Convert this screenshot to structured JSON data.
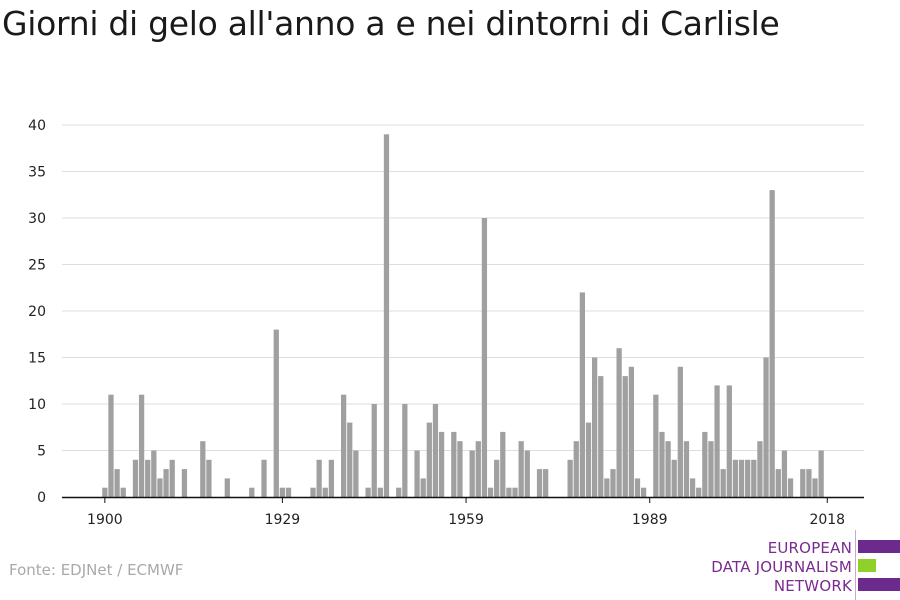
{
  "chart_data": {
    "type": "bar",
    "title": "Giorni di gelo all'anno a e nei dintorni di Carlisle",
    "xlabel": "",
    "ylabel": "",
    "ylim": [
      0,
      40
    ],
    "yticks": [
      0,
      5,
      10,
      15,
      20,
      25,
      30,
      35,
      40
    ],
    "xticks": [
      1900,
      1929,
      1959,
      1989,
      2018
    ],
    "xlim": [
      1893,
      2024
    ],
    "grid": true,
    "bar_color": "#a0a0a0",
    "x": [
      1900,
      1901,
      1902,
      1903,
      1904,
      1905,
      1906,
      1907,
      1908,
      1909,
      1910,
      1911,
      1912,
      1913,
      1914,
      1915,
      1916,
      1917,
      1918,
      1919,
      1920,
      1921,
      1922,
      1923,
      1924,
      1925,
      1926,
      1927,
      1928,
      1929,
      1930,
      1931,
      1932,
      1933,
      1934,
      1935,
      1936,
      1937,
      1938,
      1939,
      1940,
      1941,
      1942,
      1943,
      1944,
      1945,
      1946,
      1947,
      1948,
      1949,
      1950,
      1951,
      1952,
      1953,
      1954,
      1955,
      1956,
      1957,
      1958,
      1959,
      1960,
      1961,
      1962,
      1963,
      1964,
      1965,
      1966,
      1967,
      1968,
      1969,
      1970,
      1971,
      1972,
      1973,
      1974,
      1975,
      1976,
      1977,
      1978,
      1979,
      1980,
      1981,
      1982,
      1983,
      1984,
      1985,
      1986,
      1987,
      1988,
      1989,
      1990,
      1991,
      1992,
      1993,
      1994,
      1995,
      1996,
      1997,
      1998,
      1999,
      2000,
      2001,
      2002,
      2003,
      2004,
      2005,
      2006,
      2007,
      2008,
      2009,
      2010,
      2011,
      2012,
      2013,
      2014,
      2015,
      2016,
      2017,
      2018
    ],
    "values": [
      1,
      11,
      3,
      1,
      0,
      4,
      11,
      4,
      5,
      2,
      3,
      4,
      0,
      3,
      0,
      0,
      6,
      4,
      0,
      0,
      2,
      0,
      0,
      0,
      1,
      0,
      4,
      0,
      18,
      1,
      1,
      0,
      0,
      0,
      1,
      4,
      1,
      4,
      0,
      11,
      8,
      5,
      0,
      1,
      10,
      1,
      39,
      0,
      1,
      10,
      0,
      5,
      2,
      8,
      10,
      7,
      0,
      7,
      6,
      0,
      5,
      6,
      30,
      1,
      4,
      7,
      1,
      1,
      6,
      5,
      0,
      3,
      3,
      0,
      0,
      0,
      4,
      6,
      22,
      8,
      15,
      13,
      2,
      3,
      16,
      13,
      14,
      2,
      1,
      0,
      11,
      7,
      6,
      4,
      14,
      6,
      2,
      1,
      7,
      6,
      12,
      3,
      12,
      4,
      4,
      4,
      4,
      6,
      15,
      33,
      3,
      5,
      2,
      0,
      3,
      3,
      2,
      5,
      0
    ]
  },
  "source": "Fonte: EDJNet / ECMWF",
  "logo": {
    "line1": "EUROPEAN",
    "line2": "DATA JOURNALISM",
    "line3": "NETWORK",
    "color_purple": "#6b2a8c",
    "color_green": "#8fd12a"
  }
}
